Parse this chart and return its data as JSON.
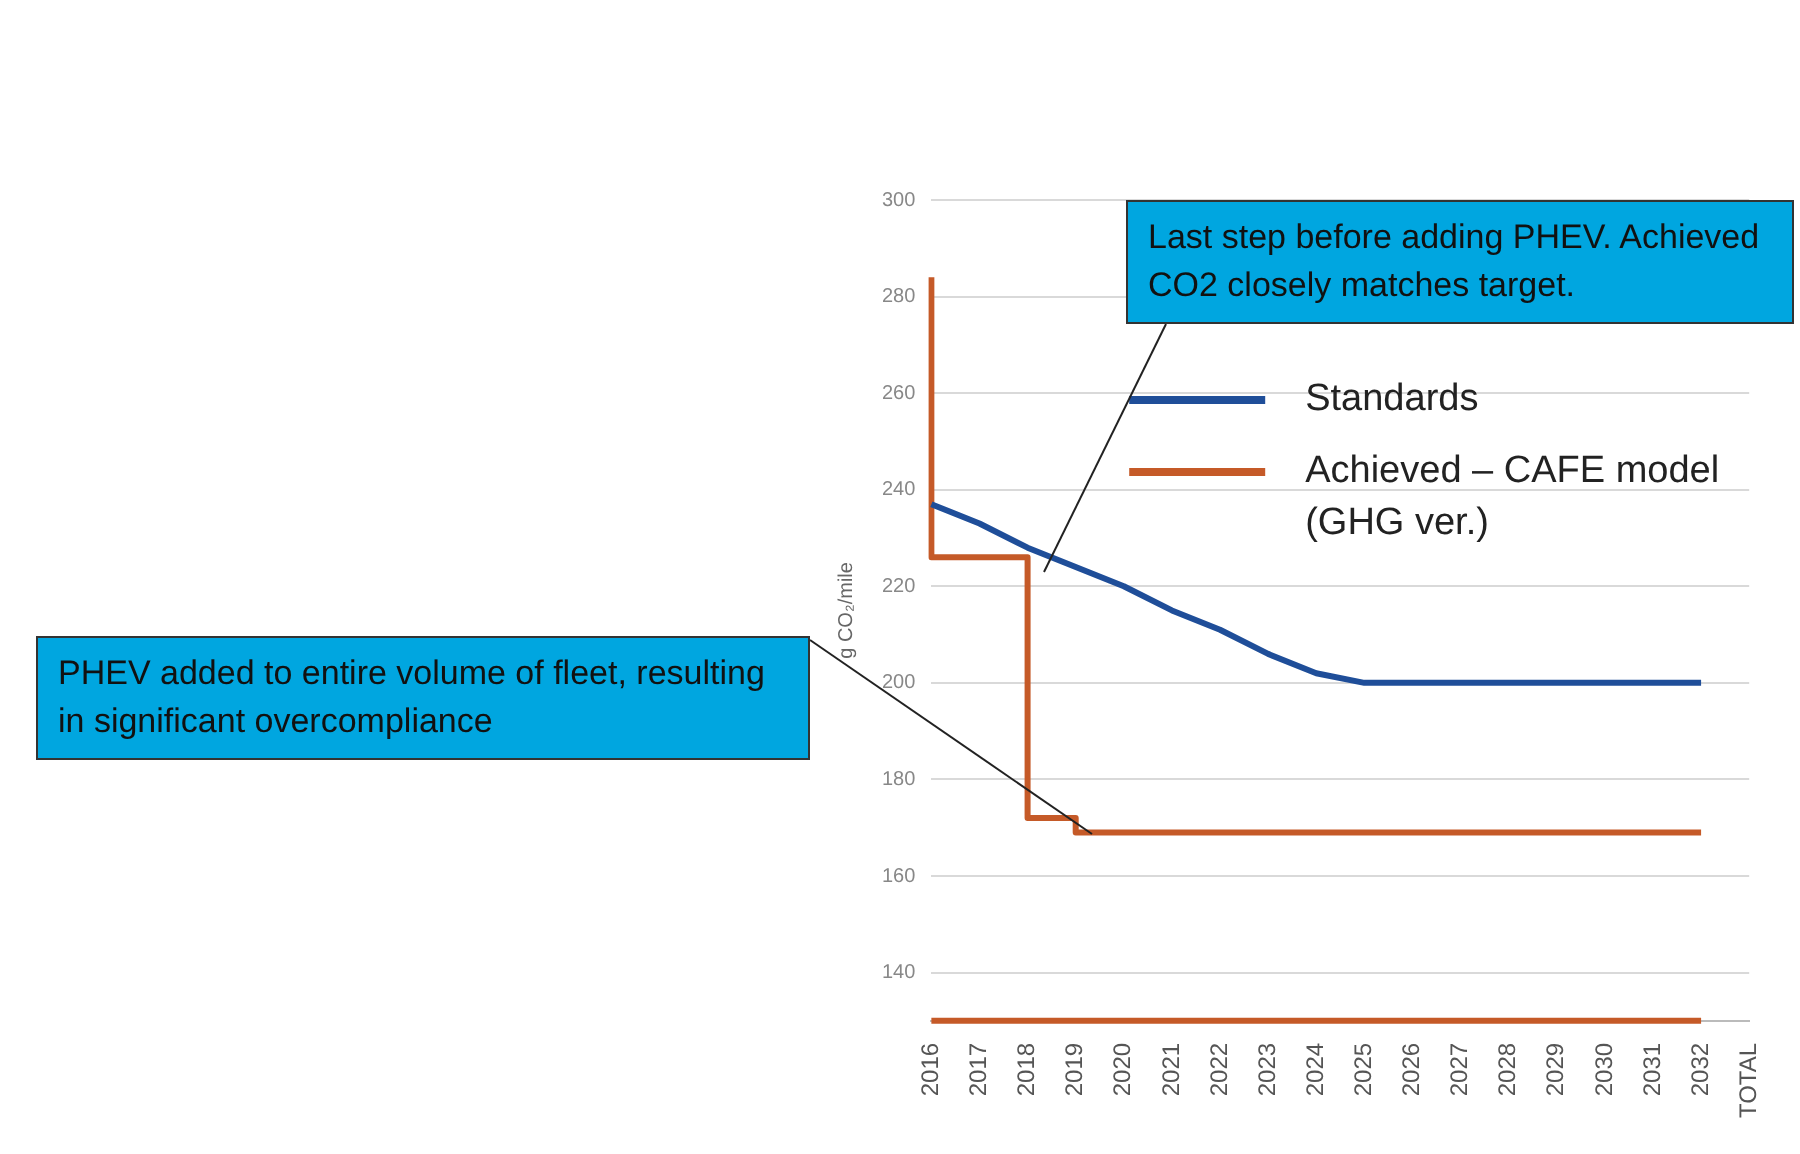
{
  "chart_data": {
    "type": "line",
    "ylabel": "g CO₂/mile",
    "categories": [
      "2016",
      "2017",
      "2018",
      "2019",
      "2020",
      "2021",
      "2022",
      "2023",
      "2024",
      "2025",
      "2026",
      "2027",
      "2028",
      "2029",
      "2030",
      "2031",
      "2032",
      "TOTAL"
    ],
    "series": [
      {
        "name": "Standards",
        "color": "#1f4e99",
        "values": [
          237,
          233,
          228,
          224,
          220,
          215,
          211,
          206,
          202,
          200,
          200,
          200,
          200,
          200,
          200,
          200,
          200,
          null
        ]
      },
      {
        "name": "Achieved – CAFE model (GHG ver.)",
        "color": "#c55a28",
        "type": "step",
        "values": [
          284,
          226,
          226,
          172,
          169,
          169,
          169,
          169,
          169,
          169,
          169,
          169,
          169,
          169,
          169,
          169,
          169,
          null
        ]
      }
    ],
    "ylim": [
      130,
      300
    ],
    "yticks": [
      140,
      160,
      180,
      200,
      220,
      240,
      260,
      280,
      300
    ],
    "grid": "y",
    "legend": "top right",
    "marker": "none",
    "ref_lines": [
      {
        "axis": "y",
        "value": 130,
        "color": "#c55a28"
      }
    ],
    "annotations": [
      "Last step before adding PHEV. Achieved CO2 closely matches target.",
      "PHEV added to entire volume of fleet, resulting in significant overcompliance"
    ]
  }
}
